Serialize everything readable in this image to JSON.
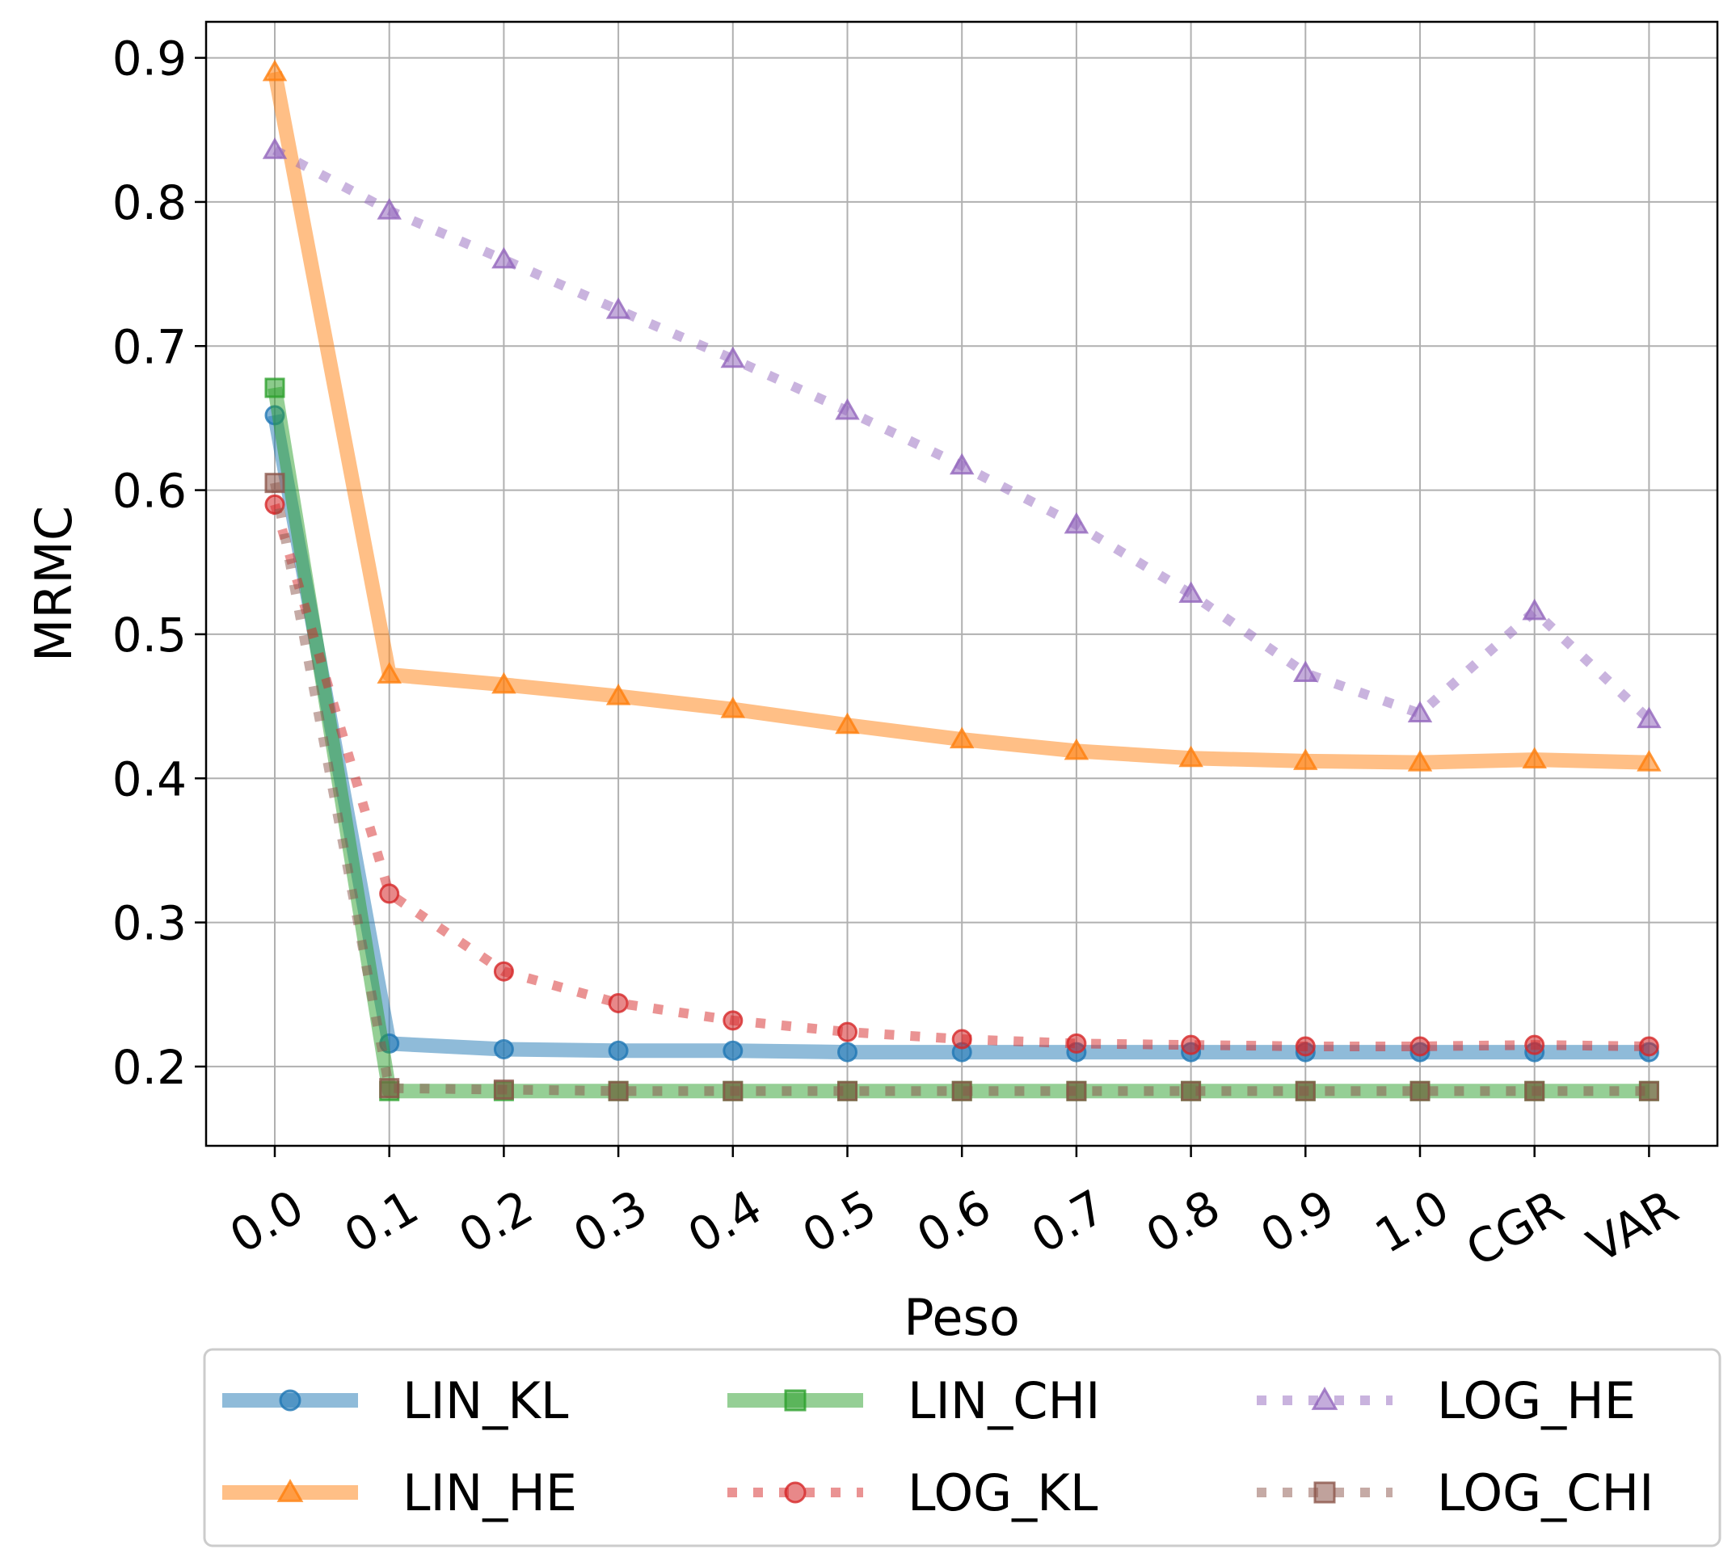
{
  "chart_data": {
    "type": "line",
    "title": "",
    "xlabel": "Peso",
    "ylabel": "MRMC",
    "categories": [
      "0.0",
      "0.1",
      "0.2",
      "0.3",
      "0.4",
      "0.5",
      "0.6",
      "0.7",
      "0.8",
      "0.9",
      "1.0",
      "CGR",
      "VAR"
    ],
    "ylim": [
      0.145,
      0.925
    ],
    "yticks": [
      "0.2",
      "0.3",
      "0.4",
      "0.5",
      "0.6",
      "0.7",
      "0.8",
      "0.9"
    ],
    "grid": true,
    "legend_position": "bottom",
    "series": [
      {
        "name": "LIN_KL",
        "color": "#1f77b4",
        "style": "solid",
        "marker": "circle",
        "values": [
          0.652,
          0.216,
          0.212,
          0.211,
          0.211,
          0.21,
          0.21,
          0.21,
          0.21,
          0.21,
          0.21,
          0.21,
          0.21
        ]
      },
      {
        "name": "LIN_HE",
        "color": "#ff7f0e",
        "style": "solid",
        "marker": "triangle",
        "values": [
          0.89,
          0.472,
          0.465,
          0.457,
          0.448,
          0.437,
          0.427,
          0.419,
          0.414,
          0.412,
          0.411,
          0.413,
          0.411
        ]
      },
      {
        "name": "LIN_CHI",
        "color": "#2ca02c",
        "style": "solid",
        "marker": "square",
        "values": [
          0.671,
          0.183,
          0.183,
          0.183,
          0.183,
          0.183,
          0.183,
          0.183,
          0.183,
          0.183,
          0.183,
          0.183,
          0.183
        ]
      },
      {
        "name": "LOG_KL",
        "color": "#d62728",
        "style": "dotted",
        "marker": "circle",
        "values": [
          0.59,
          0.32,
          0.266,
          0.244,
          0.232,
          0.224,
          0.219,
          0.216,
          0.215,
          0.214,
          0.214,
          0.215,
          0.214
        ]
      },
      {
        "name": "LOG_HE",
        "color": "#9467bd",
        "style": "dotted",
        "marker": "triangle",
        "values": [
          0.836,
          0.794,
          0.76,
          0.725,
          0.691,
          0.655,
          0.617,
          0.576,
          0.528,
          0.473,
          0.445,
          0.516,
          0.441
        ]
      },
      {
        "name": "LOG_CHI",
        "color": "#8c564b",
        "style": "dotted",
        "marker": "square",
        "values": [
          0.605,
          0.185,
          0.184,
          0.183,
          0.183,
          0.183,
          0.183,
          0.183,
          0.183,
          0.183,
          0.183,
          0.183,
          0.183
        ]
      }
    ]
  }
}
